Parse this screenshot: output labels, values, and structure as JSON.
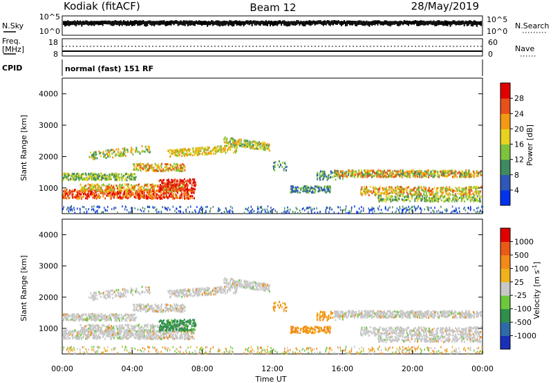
{
  "header": {
    "station": "Kodiak (fitACF)",
    "beam": "Beam 12",
    "date": "28/May/2019"
  },
  "top_panels": {
    "nsky_label": "N.Sky",
    "nsky_ticks": [
      "10^5",
      "10^0"
    ],
    "nsearch_label": "N.Search",
    "nsearch_ticks": [
      "10^5",
      "10^0"
    ],
    "freq_label_1": "Freq.",
    "freq_label_2": "[MHz]",
    "freq_ticks": [
      "18",
      "8"
    ],
    "nave_label": "Nave",
    "nave_ticks": [
      "60",
      "0"
    ],
    "cpid_label": "CPID",
    "cpid_text": "normal (fast) 151 RF"
  },
  "chart_data": [
    {
      "type": "heatmap",
      "name": "power",
      "ylabel": "Slant Range [km]",
      "yticks": [
        "4000",
        "3000",
        "2000",
        "1000"
      ],
      "ylim": [
        180,
        4500
      ],
      "xlim": [
        0,
        24
      ],
      "colorbar_label": "Power [dB]",
      "colorbar_ticks": [
        "28",
        "24",
        "20",
        "16",
        "12",
        "8",
        "4"
      ],
      "colors": [
        "#0033ee",
        "#2f57b8",
        "#3f8a5f",
        "#7fc23c",
        "#e7d21f",
        "#f39a14",
        "#e8501a",
        "#e10000"
      ]
    },
    {
      "type": "heatmap",
      "name": "velocity",
      "ylabel": "Slant Range [km]",
      "yticks": [
        "4000",
        "3000",
        "2000",
        "1000"
      ],
      "ylim": [
        180,
        4500
      ],
      "xlim": [
        0,
        24
      ],
      "xticks": [
        "00:00",
        "04:00",
        "08:00",
        "12:00",
        "16:00",
        "20:00",
        "00:00"
      ],
      "xlabel": "Time UT",
      "colorbar_label": "Velocity [m s^-1]",
      "colorbar_ticks": [
        "1000",
        "500",
        "100",
        "25",
        "-25",
        "-100",
        "-500",
        "-1000"
      ],
      "colors": [
        "#1a2fb8",
        "#2e6aa8",
        "#2f8f4c",
        "#6dc83c",
        "#c8c8c8",
        "#f0b21c",
        "#f28a18",
        "#ea5a14",
        "#e00000"
      ]
    }
  ]
}
